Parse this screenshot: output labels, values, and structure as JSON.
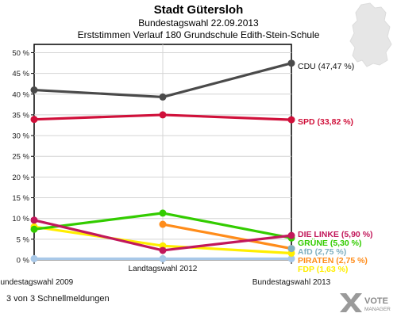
{
  "chart_data": {
    "type": "line",
    "title": "Stadt Gütersloh",
    "subtitle": "Bundestagswahl 22.09.2013",
    "subtitle2": "Erststimmen Verlauf 180 Grundschule Edith-Stein-Schule",
    "categories": [
      "Bundestagswahl 2009",
      "Landtagswahl 2012",
      "Bundestagswahl 2013"
    ],
    "ylim": [
      0,
      52
    ],
    "yticks": [
      "0 %",
      "5 %",
      "10 %",
      "15 %",
      "20 %",
      "25 %",
      "30 %",
      "35 %",
      "40 %",
      "45 %",
      "50 %"
    ],
    "grid": true,
    "series": [
      {
        "name": "CDU",
        "label": "CDU (47,47 %)",
        "color": "#4a4a4a",
        "values": [
          41.0,
          39.3,
          47.47
        ]
      },
      {
        "name": "SPD",
        "label": "SPD (33,82 %)",
        "color": "#d0103a",
        "values": [
          33.9,
          35.0,
          33.82
        ]
      },
      {
        "name": "DIE LINKE",
        "label": "DIE LINKE (5,90 %)",
        "color": "#c2185b",
        "values": [
          9.6,
          2.3,
          5.9
        ]
      },
      {
        "name": "GRÜNE",
        "label": "GRÜNE (5,30 %)",
        "color": "#33cc00",
        "values": [
          7.4,
          11.3,
          5.3
        ]
      },
      {
        "name": "AfD",
        "label": "AfD (2,75 %)",
        "color": "#80b0c0",
        "values": [
          null,
          null,
          2.75
        ]
      },
      {
        "name": "PIRATEN",
        "label": "PIRATEN (2,75 %)",
        "color": "#ff8c1a",
        "values": [
          null,
          8.6,
          2.75
        ]
      },
      {
        "name": "FDP",
        "label": "FDP (1,63 %)",
        "color": "#ffee00",
        "values": [
          8.0,
          3.4,
          1.63
        ]
      },
      {
        "name": "Sonstige",
        "label": "",
        "color": "#a8c8e8",
        "values": [
          0.3,
          0.3,
          0.3
        ]
      }
    ]
  },
  "footer": {
    "status": "3 von 3 Schnellmeldungen",
    "logo_line1": "VOTE",
    "logo_line2": "MANAGER"
  }
}
